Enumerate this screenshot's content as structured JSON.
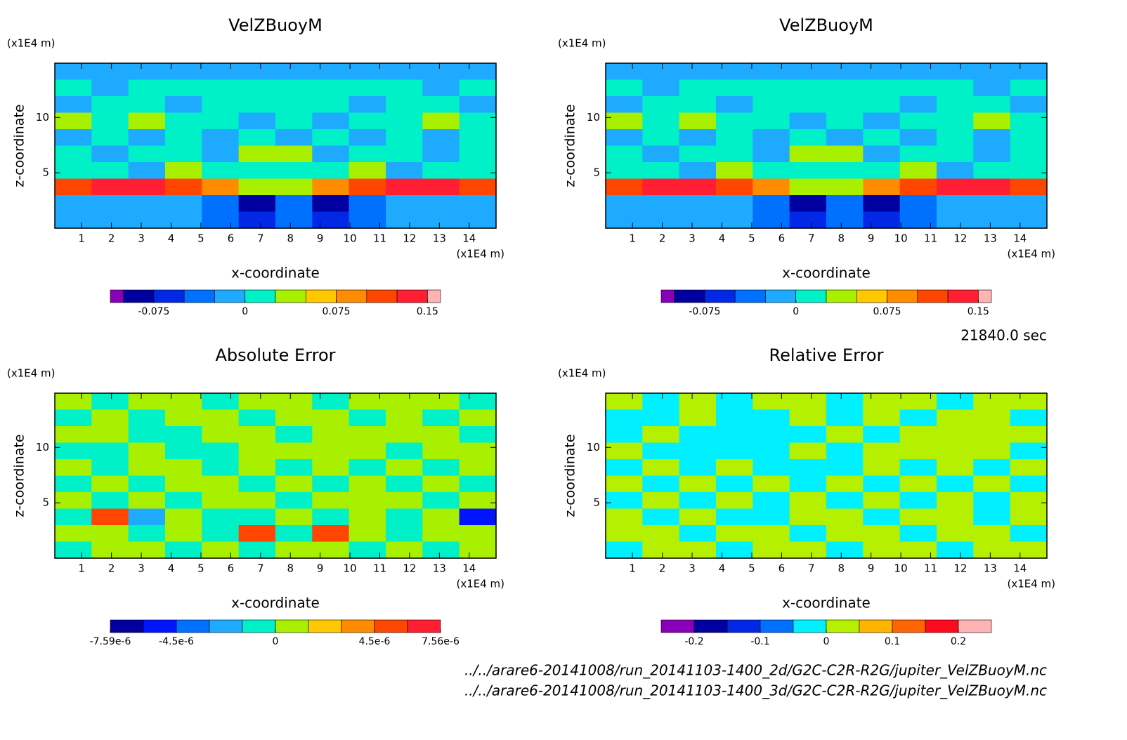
{
  "chart_data": [
    {
      "type": "contour",
      "title": "VelZBuoyM",
      "xlabel": "x-coordinate",
      "ylabel": "z-coordinate",
      "xunit": "(x1E4 m)",
      "yunit": "(x1E4 m)",
      "xlim": [
        0.1,
        14.9
      ],
      "ylim": [
        0,
        14.9
      ],
      "xticks": [
        1,
        2,
        3,
        4,
        5,
        6,
        7,
        8,
        9,
        10,
        11,
        12,
        13,
        14
      ],
      "yticks": [
        5,
        10
      ],
      "z": [
        [
          -0.01,
          -0.01,
          -0.01,
          -0.01,
          -0.01,
          -0.01,
          -0.01,
          -0.01,
          -0.01,
          -0.01,
          -0.01,
          -0.01
        ],
        [
          0.01,
          -0.01,
          0.01,
          0.01,
          0.01,
          0.01,
          0.01,
          0.01,
          0.01,
          0.01,
          -0.01,
          0.01
        ],
        [
          -0.01,
          0.01,
          0.01,
          -0.01,
          0.01,
          0.01,
          0.01,
          0.01,
          -0.01,
          0.01,
          0.01,
          -0.01
        ],
        [
          0.03,
          0.01,
          0.03,
          0.01,
          0.01,
          -0.01,
          0.01,
          -0.01,
          0.01,
          0.01,
          0.03,
          0.01
        ],
        [
          -0.01,
          0.01,
          -0.01,
          0.01,
          -0.01,
          0.01,
          -0.01,
          0.01,
          -0.01,
          0.01,
          -0.01,
          0.01
        ],
        [
          0.01,
          -0.01,
          0.01,
          0.01,
          -0.01,
          0.03,
          0.03,
          -0.01,
          0.01,
          0.01,
          -0.01,
          0.01
        ],
        [
          0.01,
          0.01,
          -0.01,
          0.03,
          0.01,
          0.01,
          0.01,
          0.01,
          0.03,
          -0.01,
          0.01,
          0.01
        ],
        [
          0.11,
          0.14,
          0.14,
          0.12,
          0.09,
          0.04,
          0.04,
          0.09,
          0.12,
          0.14,
          0.14,
          0.11
        ],
        [
          -0.01,
          -0.01,
          -0.01,
          -0.01,
          -0.04,
          -0.09,
          -0.03,
          -0.09,
          -0.04,
          -0.01,
          -0.01,
          -0.01
        ],
        [
          -0.01,
          -0.01,
          -0.01,
          -0.01,
          -0.03,
          -0.06,
          -0.03,
          -0.06,
          -0.03,
          -0.01,
          -0.01,
          -0.01
        ]
      ],
      "colorbar": {
        "extend": "both",
        "levels": [
          -0.1,
          -0.075,
          -0.05,
          -0.025,
          0,
          0.025,
          0.05,
          0.075,
          0.1,
          0.125,
          0.15
        ],
        "colors": [
          "#8a00b8",
          "#0000a0",
          "#0028e6",
          "#0070ff",
          "#1eaaff",
          "#00f0c8",
          "#a8f000",
          "#ffc800",
          "#ff8c00",
          "#ff4600",
          "#ff1e32",
          "#ffb4b4"
        ],
        "ticks": [
          -0.075,
          0,
          0.075,
          0.15
        ]
      }
    },
    {
      "type": "contour",
      "title": "VelZBuoyM",
      "xlabel": "x-coordinate",
      "ylabel": "z-coordinate",
      "xunit": "(x1E4 m)",
      "yunit": "(x1E4 m)",
      "xlim": [
        0.1,
        14.9
      ],
      "ylim": [
        0,
        14.9
      ],
      "xticks": [
        1,
        2,
        3,
        4,
        5,
        6,
        7,
        8,
        9,
        10,
        11,
        12,
        13,
        14
      ],
      "yticks": [
        5,
        10
      ],
      "z": [
        [
          -0.01,
          -0.01,
          -0.01,
          -0.01,
          -0.01,
          -0.01,
          -0.01,
          -0.01,
          -0.01,
          -0.01,
          -0.01,
          -0.01
        ],
        [
          0.01,
          -0.01,
          0.01,
          0.01,
          0.01,
          0.01,
          0.01,
          0.01,
          0.01,
          0.01,
          -0.01,
          0.01
        ],
        [
          -0.01,
          0.01,
          0.01,
          -0.01,
          0.01,
          0.01,
          0.01,
          0.01,
          -0.01,
          0.01,
          0.01,
          -0.01
        ],
        [
          0.03,
          0.01,
          0.03,
          0.01,
          0.01,
          -0.01,
          0.01,
          -0.01,
          0.01,
          0.01,
          0.03,
          0.01
        ],
        [
          -0.01,
          0.01,
          -0.01,
          0.01,
          -0.01,
          0.01,
          -0.01,
          0.01,
          -0.01,
          0.01,
          -0.01,
          0.01
        ],
        [
          0.01,
          -0.01,
          0.01,
          0.01,
          -0.01,
          0.03,
          0.03,
          -0.01,
          0.01,
          0.01,
          -0.01,
          0.01
        ],
        [
          0.01,
          0.01,
          -0.01,
          0.03,
          0.01,
          0.01,
          0.01,
          0.01,
          0.03,
          -0.01,
          0.01,
          0.01
        ],
        [
          0.11,
          0.14,
          0.14,
          0.12,
          0.09,
          0.04,
          0.04,
          0.09,
          0.12,
          0.14,
          0.14,
          0.11
        ],
        [
          -0.01,
          -0.01,
          -0.01,
          -0.01,
          -0.04,
          -0.09,
          -0.03,
          -0.09,
          -0.04,
          -0.01,
          -0.01,
          -0.01
        ],
        [
          -0.01,
          -0.01,
          -0.01,
          -0.01,
          -0.03,
          -0.06,
          -0.03,
          -0.06,
          -0.03,
          -0.01,
          -0.01,
          -0.01
        ]
      ],
      "colorbar": {
        "extend": "both",
        "levels": [
          -0.1,
          -0.075,
          -0.05,
          -0.025,
          0,
          0.025,
          0.05,
          0.075,
          0.1,
          0.125,
          0.15
        ],
        "colors": [
          "#8a00b8",
          "#0000a0",
          "#0028e6",
          "#0070ff",
          "#1eaaff",
          "#00f0c8",
          "#a8f000",
          "#ffc800",
          "#ff8c00",
          "#ff4600",
          "#ff1e32",
          "#ffb4b4"
        ],
        "ticks": [
          -0.075,
          0,
          0.075,
          0.15
        ]
      }
    },
    {
      "type": "contour",
      "title": "Absolute Error",
      "xlabel": "x-coordinate",
      "ylabel": "z-coordinate",
      "xunit": "(x1E4 m)",
      "yunit": "(x1E4 m)",
      "xlim": [
        0.1,
        14.9
      ],
      "ylim": [
        0,
        14.9
      ],
      "xticks": [
        1,
        2,
        3,
        4,
        5,
        6,
        7,
        8,
        9,
        10,
        11,
        12,
        13,
        14
      ],
      "yticks": [
        5,
        10
      ],
      "z": [
        [
          5e-07,
          -5e-07,
          5e-07,
          5e-07,
          -5e-07,
          5e-07,
          5e-07,
          -5e-07,
          5e-07,
          5e-07,
          5e-07,
          -5e-07
        ],
        [
          -5e-07,
          5e-07,
          -5e-07,
          5e-07,
          5e-07,
          -5e-07,
          5e-07,
          5e-07,
          -5e-07,
          5e-07,
          -5e-07,
          5e-07
        ],
        [
          5e-07,
          5e-07,
          -5e-07,
          -5e-07,
          5e-07,
          5e-07,
          -5e-07,
          5e-07,
          5e-07,
          5e-07,
          5e-07,
          -5e-07
        ],
        [
          -5e-07,
          -5e-07,
          5e-07,
          -5e-07,
          -5e-07,
          5e-07,
          5e-07,
          5e-07,
          5e-07,
          -5e-07,
          5e-07,
          5e-07
        ],
        [
          5e-07,
          -5e-07,
          5e-07,
          5e-07,
          -5e-07,
          5e-07,
          -5e-07,
          5e-07,
          -5e-07,
          5e-07,
          -5e-07,
          5e-07
        ],
        [
          -5e-07,
          5e-07,
          -5e-07,
          5e-07,
          5e-07,
          -5e-07,
          5e-07,
          -5e-07,
          5e-07,
          -5e-07,
          5e-07,
          -5e-07
        ],
        [
          5e-07,
          -5e-07,
          5e-07,
          -5e-07,
          5e-07,
          5e-07,
          -5e-07,
          5e-07,
          5e-07,
          5e-07,
          -5e-07,
          5e-07
        ],
        [
          -5e-07,
          5e-06,
          -2e-06,
          5e-07,
          -5e-07,
          -5e-07,
          5e-07,
          -5e-07,
          5e-07,
          -5e-07,
          5e-07,
          -5e-06
        ],
        [
          5e-07,
          5e-07,
          -5e-07,
          5e-07,
          -5e-07,
          5e-06,
          -5e-07,
          5e-06,
          5e-07,
          -5e-07,
          5e-07,
          5e-07
        ],
        [
          -5e-07,
          5e-07,
          5e-07,
          -5e-07,
          5e-07,
          -5e-07,
          5e-07,
          5e-07,
          -5e-07,
          5e-07,
          -5e-07,
          5e-07
        ]
      ],
      "colorbar": {
        "extend": "none",
        "levels": [
          -7.59e-06,
          -6e-06,
          -4.5e-06,
          -3e-06,
          -1.5e-06,
          0,
          1.5e-06,
          3e-06,
          4.5e-06,
          6e-06,
          7.56e-06
        ],
        "colors": [
          "#0000a0",
          "#0014ff",
          "#0070ff",
          "#1eaaff",
          "#00f0c8",
          "#a8f000",
          "#ffc800",
          "#ff8c00",
          "#ff4600",
          "#ff1e32"
        ],
        "ticks": [
          {
            "value": -7.59e-06,
            "label": "-7.59e-6"
          },
          {
            "value": -4.5e-06,
            "label": "-4.5e-6"
          },
          0,
          {
            "value": 4.5e-06,
            "label": "4.5e-6"
          },
          {
            "value": 7.56e-06,
            "label": "7.56e-6"
          }
        ]
      }
    },
    {
      "type": "contour",
      "title": "Relative Error",
      "xlabel": "x-coordinate",
      "ylabel": "z-coordinate",
      "xunit": "(x1E4 m)",
      "yunit": "(x1E4 m)",
      "xlim": [
        0.1,
        14.9
      ],
      "ylim": [
        0,
        14.9
      ],
      "xticks": [
        1,
        2,
        3,
        4,
        5,
        6,
        7,
        8,
        9,
        10,
        11,
        12,
        13,
        14
      ],
      "yticks": [
        5,
        10
      ],
      "z": [
        [
          0.02,
          -0.02,
          0.02,
          -0.02,
          0.02,
          0.02,
          -0.02,
          0.02,
          0.02,
          -0.02,
          0.02,
          0.02
        ],
        [
          -0.02,
          -0.02,
          0.02,
          -0.02,
          -0.02,
          0.02,
          -0.02,
          0.02,
          -0.02,
          0.02,
          0.02,
          -0.02
        ],
        [
          -0.02,
          0.02,
          -0.02,
          -0.02,
          -0.02,
          -0.02,
          0.02,
          -0.02,
          0.02,
          0.02,
          0.02,
          0.02
        ],
        [
          0.02,
          -0.02,
          -0.02,
          -0.02,
          -0.02,
          0.02,
          -0.02,
          0.02,
          0.02,
          0.02,
          0.02,
          -0.02
        ],
        [
          -0.02,
          0.02,
          -0.02,
          0.02,
          -0.02,
          -0.02,
          -0.02,
          0.02,
          -0.02,
          0.02,
          -0.02,
          0.02
        ],
        [
          0.02,
          -0.02,
          0.02,
          -0.02,
          0.02,
          -0.02,
          0.02,
          -0.02,
          0.02,
          -0.02,
          0.02,
          -0.02
        ],
        [
          -0.02,
          0.02,
          -0.02,
          0.02,
          -0.02,
          0.02,
          -0.02,
          0.02,
          -0.02,
          0.02,
          -0.02,
          0.02
        ],
        [
          0.02,
          -0.02,
          0.02,
          -0.02,
          -0.02,
          0.02,
          0.02,
          -0.02,
          0.02,
          0.02,
          -0.02,
          0.02
        ],
        [
          0.02,
          0.02,
          -0.02,
          0.02,
          0.02,
          -0.02,
          0.02,
          0.02,
          -0.02,
          0.02,
          0.02,
          -0.02
        ],
        [
          -0.02,
          0.02,
          0.02,
          -0.02,
          0.02,
          0.02,
          -0.02,
          0.02,
          0.02,
          -0.02,
          0.02,
          0.02
        ]
      ],
      "colorbar": {
        "extend": "none",
        "levels": [
          -0.25,
          -0.2,
          -0.15,
          -0.1,
          -0.05,
          0,
          0.05,
          0.1,
          0.15,
          0.2,
          0.25
        ],
        "colors": [
          "#8a00b8",
          "#0000a0",
          "#0028e6",
          "#0070ff",
          "#00f0ff",
          "#b4f000",
          "#ffb400",
          "#ff6400",
          "#ff0a1e",
          "#ffb4b4"
        ],
        "ticks": [
          -0.2,
          -0.1,
          0,
          0.1,
          0.2
        ]
      }
    }
  ],
  "time_label": "21840.0 sec",
  "files": [
    "../../arare6-20141008/run_20141103-1400_2d/G2C-C2R-R2G/jupiter_VelZBuoyM.nc",
    "../../arare6-20141008/run_20141103-1400_3d/G2C-C2R-R2G/jupiter_VelZBuoyM.nc"
  ]
}
